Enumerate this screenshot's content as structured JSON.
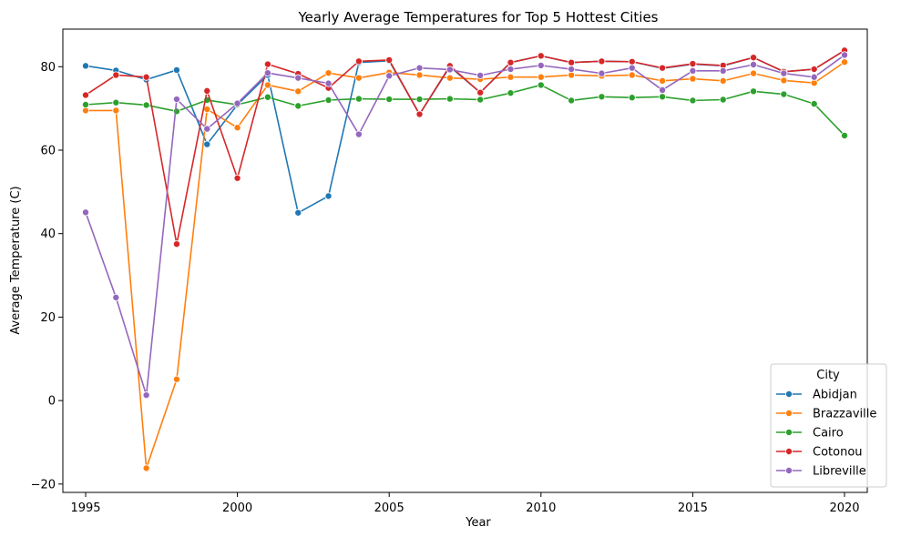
{
  "chart_data": {
    "type": "line",
    "title": "Yearly Average Temperatures for Top 5 Hottest Cities",
    "xlabel": "Year",
    "ylabel": "Average Temperature (C)",
    "xlim": [
      1994.25,
      2020.75
    ],
    "ylim": [
      -22,
      89
    ],
    "xticks": [
      1995,
      2000,
      2005,
      2010,
      2015,
      2020
    ],
    "yticks": [
      -20,
      0,
      20,
      40,
      60,
      80
    ],
    "grid": false,
    "legend": {
      "title": "City",
      "position": "bottom-right"
    },
    "x": [
      1995,
      1996,
      1997,
      1998,
      1999,
      2000,
      2001,
      2002,
      2003,
      2004,
      2005,
      2006,
      2007,
      2008,
      2009,
      2010,
      2011,
      2012,
      2013,
      2014,
      2015,
      2016,
      2017,
      2018,
      2019,
      2020
    ],
    "series": [
      {
        "name": "Abidjan",
        "color": "#1f77b4",
        "values": [
          80.2,
          79.1,
          76.9,
          79.2,
          61.4,
          70.9,
          78.0,
          45.0,
          49.0,
          81.0,
          81.4,
          68.6,
          80.0,
          73.8,
          81.0,
          82.6,
          81.0,
          81.3,
          81.2,
          79.6,
          80.6,
          80.2,
          82.2,
          78.8,
          79.4,
          83.9
        ]
      },
      {
        "name": "Brazzaville",
        "color": "#ff7f0e",
        "values": [
          69.5,
          69.5,
          -16.2,
          5.1,
          69.8,
          65.4,
          75.6,
          74.1,
          78.5,
          77.3,
          78.6,
          78.0,
          77.3,
          77.0,
          77.5,
          77.5,
          78.0,
          77.8,
          78.0,
          76.6,
          77.1,
          76.6,
          78.4,
          76.7,
          76.1,
          81.1
        ]
      },
      {
        "name": "Cairo",
        "color": "#2ca02c",
        "values": [
          70.9,
          71.4,
          70.8,
          69.3,
          72.0,
          70.9,
          72.7,
          70.6,
          72.0,
          72.3,
          72.2,
          72.2,
          72.3,
          72.1,
          73.7,
          75.6,
          71.9,
          72.8,
          72.6,
          72.8,
          71.9,
          72.1,
          74.1,
          73.4,
          71.1,
          63.5
        ]
      },
      {
        "name": "Cotonou",
        "color": "#d62728",
        "values": [
          73.2,
          78.0,
          77.5,
          37.5,
          74.2,
          53.3,
          80.6,
          78.3,
          74.9,
          81.3,
          81.6,
          68.6,
          80.2,
          73.8,
          81.0,
          82.6,
          81.0,
          81.3,
          81.2,
          79.7,
          80.7,
          80.3,
          82.2,
          78.8,
          79.4,
          83.9
        ]
      },
      {
        "name": "Libreville",
        "color": "#9467bd",
        "values": [
          45.1,
          24.7,
          1.3,
          72.2,
          65.1,
          71.2,
          78.5,
          77.3,
          76.0,
          63.8,
          77.8,
          79.7,
          79.3,
          77.9,
          79.4,
          80.3,
          79.4,
          78.4,
          79.7,
          74.4,
          79.0,
          79.0,
          80.5,
          78.4,
          77.5,
          82.8
        ]
      }
    ]
  }
}
